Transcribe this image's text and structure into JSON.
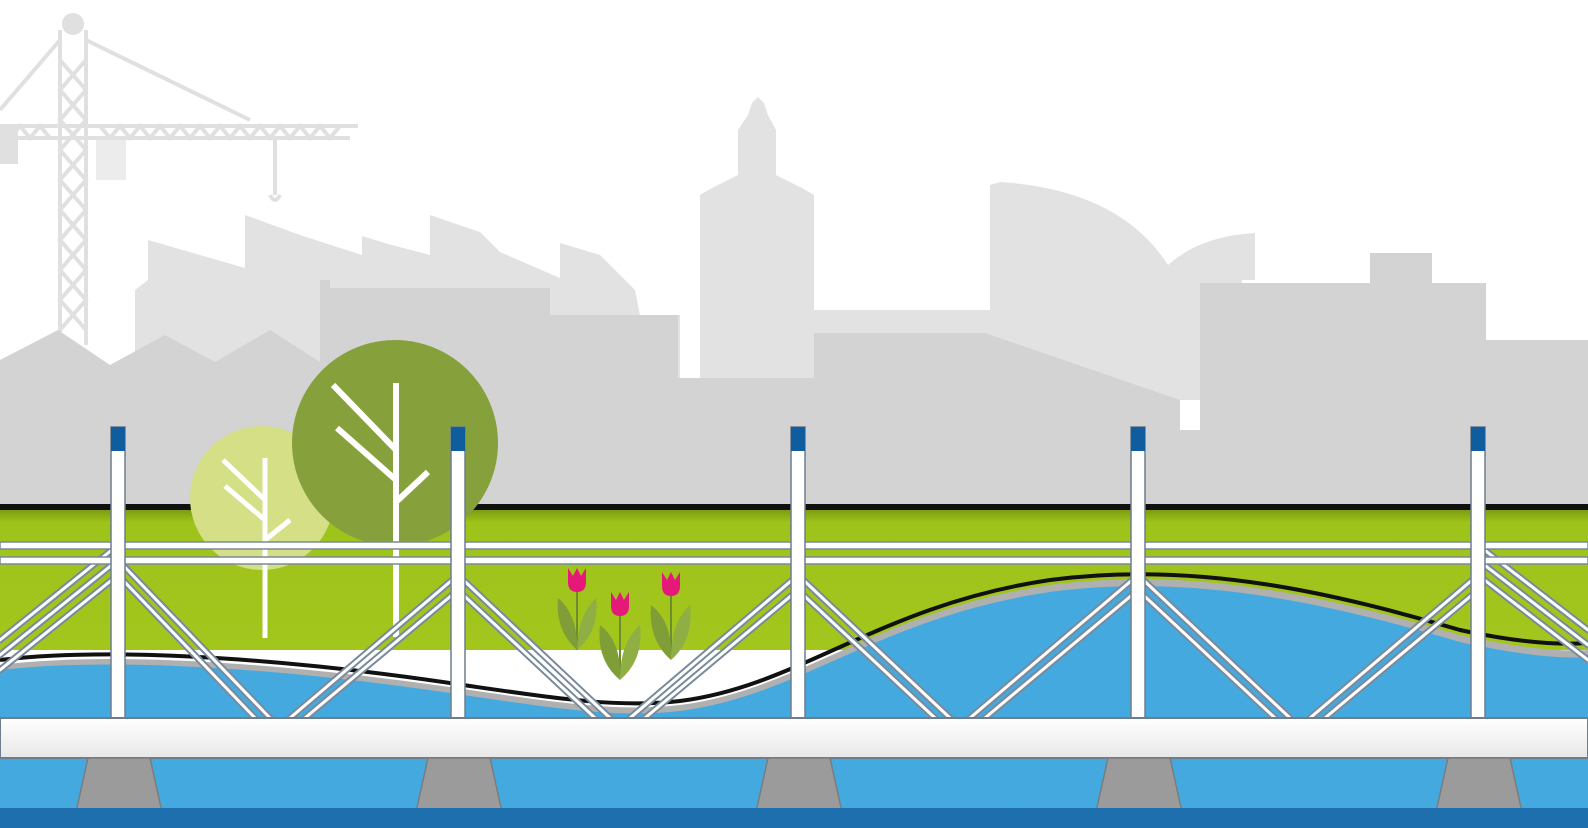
{
  "colors": {
    "sky": "#ffffff",
    "crane": "#e3e3e3",
    "skyline_back": "#e2e2e2",
    "skyline_front": "#d3d3d3",
    "grass": "#9ec31b",
    "grass_dark": "#7fa10f",
    "water": "#44a9df",
    "water_deep": "#1e6fae",
    "deck": "#f5f5f5",
    "pier": "#9b9b9b",
    "pole_cap": "#0f5d9e",
    "tree_light": "#d4df86",
    "tree_dark": "#86a03c",
    "tulip": "#e5197a",
    "tulip_leaf": "#7f9e37"
  },
  "icons": {
    "crane": "construction-crane-icon",
    "church": "church-tower-icon",
    "tree": "stylized-tree-icon",
    "tulip": "tulip-flower-icon"
  }
}
